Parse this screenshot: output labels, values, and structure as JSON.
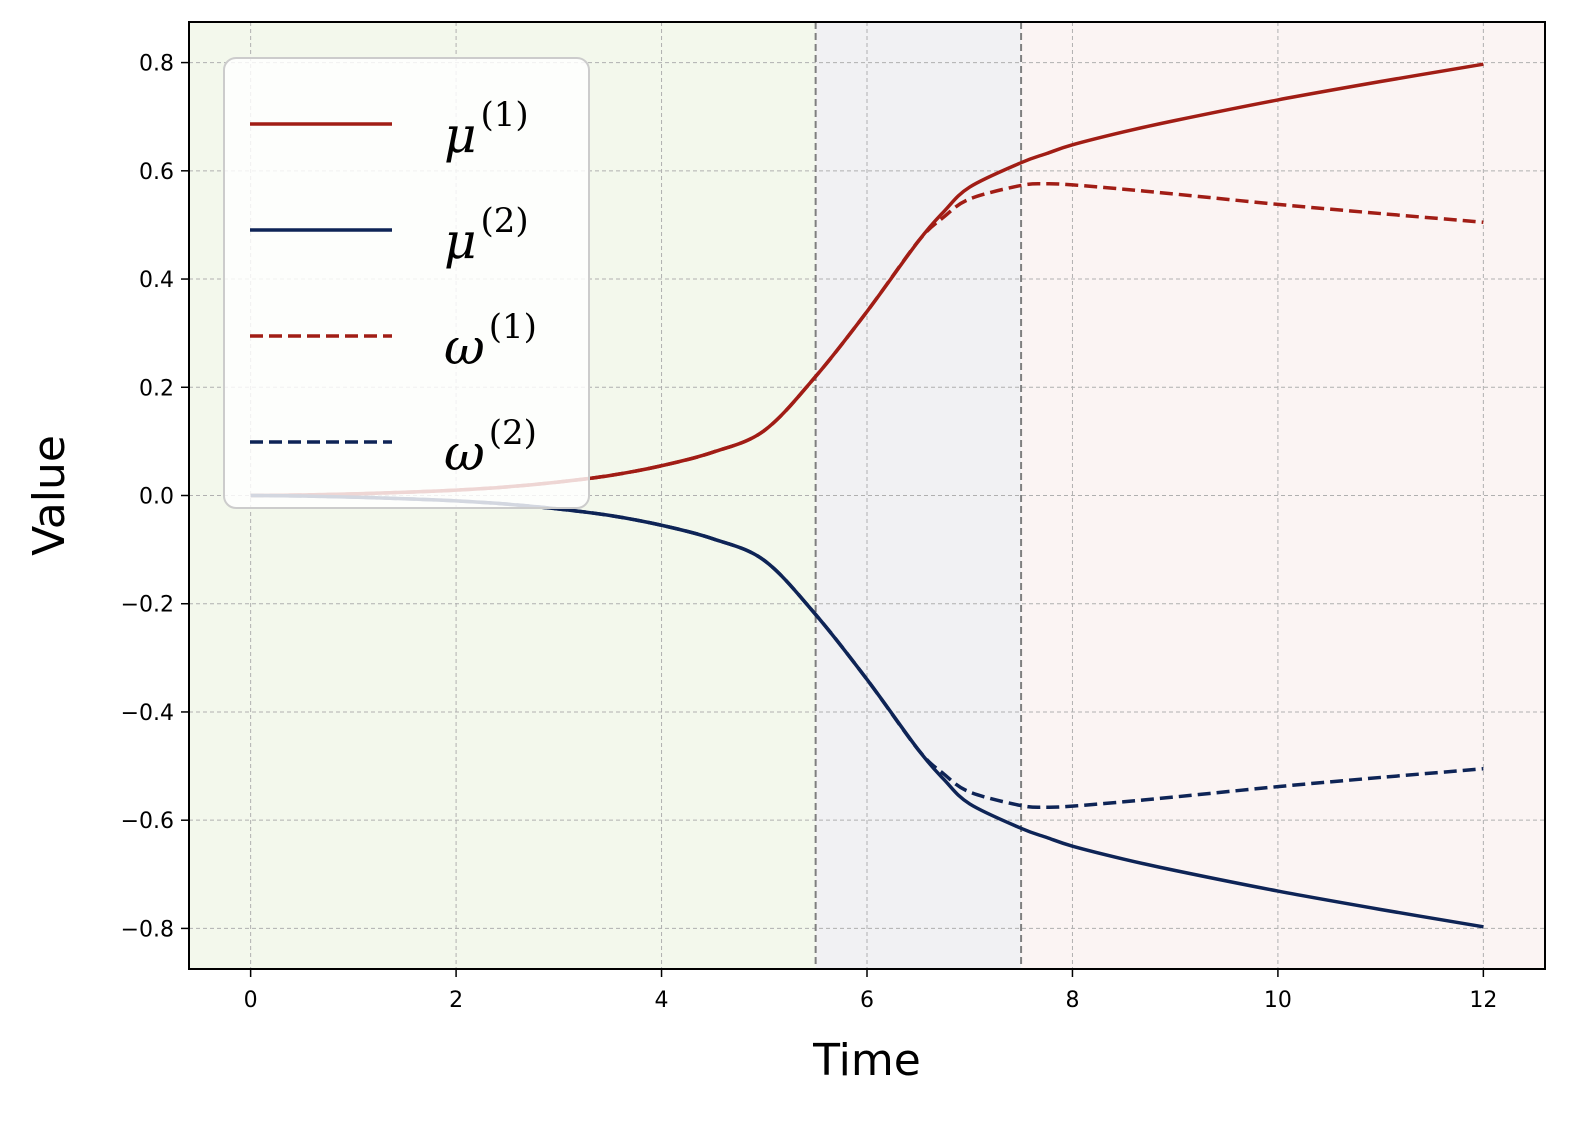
{
  "chart_data": {
    "type": "line",
    "xlabel": "Time",
    "ylabel": "Value",
    "xlim": [
      -0.6,
      12.6
    ],
    "ylim": [
      -0.875,
      0.875
    ],
    "xticks": [
      0,
      2,
      4,
      6,
      8,
      10,
      12
    ],
    "xtick_labels": [
      "0",
      "2",
      "4",
      "6",
      "8",
      "10",
      "12"
    ],
    "yticks": [
      -0.8,
      -0.6,
      -0.4,
      -0.2,
      0.0,
      0.2,
      0.4,
      0.6,
      0.8
    ],
    "ytick_labels": [
      "−0.8",
      "−0.6",
      "−0.4",
      "−0.2",
      "0.0",
      "0.2",
      "0.4",
      "0.6",
      "0.8"
    ],
    "grid": true,
    "legend_position": "upper-left",
    "shaded_regions": [
      {
        "from": -0.6,
        "to": 5.5,
        "color": "#f3f8ec"
      },
      {
        "from": 5.5,
        "to": 7.5,
        "color": "#f1f1f3"
      },
      {
        "from": 7.5,
        "to": 12.6,
        "color": "#fbf4f3"
      }
    ],
    "vlines": [
      5.5,
      7.5
    ],
    "x": [
      0,
      0.5,
      1,
      1.5,
      2,
      2.5,
      3,
      3.5,
      4,
      4.5,
      5,
      5.5,
      6,
      6.5,
      6.75,
      7,
      7.5,
      7.75,
      8,
      8.5,
      9,
      10,
      11,
      12
    ],
    "series": [
      {
        "name": "μ",
        "superscript": "(1)",
        "color": "#a11d15",
        "dash": "solid",
        "values": [
          0.0,
          0.001,
          0.003,
          0.006,
          0.01,
          0.016,
          0.025,
          0.037,
          0.055,
          0.08,
          0.12,
          0.22,
          0.34,
          0.47,
          0.525,
          0.57,
          0.615,
          0.632,
          0.648,
          0.672,
          0.693,
          0.731,
          0.765,
          0.797
        ]
      },
      {
        "name": "μ",
        "superscript": "(2)",
        "color": "#0e2456",
        "dash": "solid",
        "values": [
          0.0,
          -0.001,
          -0.003,
          -0.006,
          -0.01,
          -0.016,
          -0.025,
          -0.037,
          -0.055,
          -0.08,
          -0.12,
          -0.22,
          -0.34,
          -0.47,
          -0.525,
          -0.57,
          -0.615,
          -0.632,
          -0.648,
          -0.672,
          -0.693,
          -0.731,
          -0.765,
          -0.797
        ]
      },
      {
        "name": "ω",
        "superscript": "(1)",
        "color": "#a11d15",
        "dash": "dashed",
        "values": [
          0.0,
          0.001,
          0.003,
          0.006,
          0.01,
          0.016,
          0.025,
          0.037,
          0.055,
          0.08,
          0.12,
          0.22,
          0.34,
          0.47,
          0.515,
          0.548,
          0.573,
          0.576,
          0.574,
          0.566,
          0.557,
          0.538,
          0.521,
          0.505
        ]
      },
      {
        "name": "ω",
        "superscript": "(2)",
        "color": "#0e2456",
        "dash": "dashed",
        "values": [
          0.0,
          -0.001,
          -0.003,
          -0.006,
          -0.01,
          -0.016,
          -0.025,
          -0.037,
          -0.055,
          -0.08,
          -0.12,
          -0.22,
          -0.34,
          -0.47,
          -0.515,
          -0.548,
          -0.573,
          -0.576,
          -0.574,
          -0.566,
          -0.557,
          -0.538,
          -0.521,
          -0.505
        ]
      }
    ]
  }
}
